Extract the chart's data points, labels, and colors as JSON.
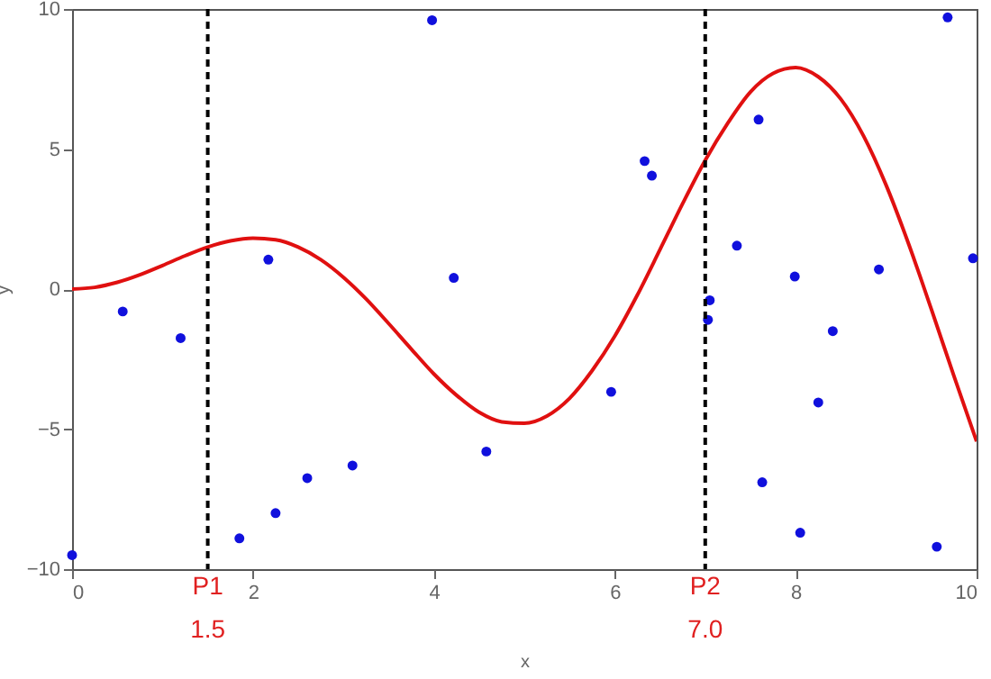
{
  "chart_data": {
    "type": "scatter",
    "xlabel": "x",
    "ylabel": "y",
    "xlim": [
      0,
      10
    ],
    "ylim": [
      -10,
      10
    ],
    "xticks": [
      0,
      2,
      4,
      6,
      8,
      10
    ],
    "yticks": [
      -10,
      -5,
      0,
      5,
      10
    ],
    "grid": false,
    "series": [
      {
        "type": "line",
        "color": "#e01010",
        "line_style": "solid",
        "marker": "none",
        "x": [
          0,
          0.25,
          0.5,
          0.75,
          1,
          1.25,
          1.5,
          1.75,
          2,
          2.25,
          2.5,
          2.75,
          3,
          3.25,
          3.5,
          3.75,
          4,
          4.25,
          4.5,
          4.75,
          5,
          5.25,
          5.5,
          5.75,
          6,
          6.25,
          6.5,
          6.75,
          7,
          7.25,
          7.5,
          7.75,
          8,
          8.25,
          8.5,
          8.75,
          9,
          9.25,
          9.5,
          9.75,
          10
        ],
        "values": [
          0,
          0.06,
          0.24,
          0.51,
          0.84,
          1.19,
          1.5,
          1.72,
          1.82,
          1.76,
          1.5,
          1.05,
          0.42,
          -0.35,
          -1.23,
          -2.14,
          -3.03,
          -3.79,
          -4.4,
          -4.74,
          -4.79,
          -4.53,
          -3.9,
          -2.91,
          -1.68,
          -0.21,
          1.41,
          3.05,
          4.6,
          5.93,
          7.04,
          7.7,
          7.91,
          7.58,
          6.78,
          5.47,
          3.71,
          1.6,
          -0.72,
          -3.11,
          -5.44
        ]
      },
      {
        "color": "#1010dd",
        "marker": "circle",
        "x": [
          0,
          0.56,
          1.2,
          1.85,
          2.17,
          2.25,
          2.6,
          3.1,
          3.98,
          4.22,
          4.58,
          5.96,
          6.33,
          6.41,
          7.03,
          7.05,
          7.35,
          7.59,
          7.63,
          7.99,
          8.05,
          8.25,
          8.41,
          8.92,
          9.56,
          9.68,
          9.96
        ],
        "values": [
          -9.5,
          -0.8,
          -1.75,
          -8.9,
          1.05,
          -8,
          -6.75,
          -6.3,
          9.6,
          0.4,
          -5.8,
          -3.67,
          4.57,
          4.05,
          -1.1,
          -0.4,
          1.55,
          6.05,
          -6.9,
          0.45,
          -8.7,
          -4.05,
          -1.5,
          0.7,
          -9.2,
          9.7,
          1.1
        ]
      }
    ],
    "ref_lines": [
      {
        "axis": "x",
        "value": 1.5,
        "label": "P1",
        "color": "#000000",
        "line_style": "dashed"
      },
      {
        "axis": "x",
        "value": 7.0,
        "label": "P2",
        "color": "#000000",
        "line_style": "dashed"
      }
    ],
    "annotations": [
      {
        "text": "1.5",
        "x": 1.5,
        "y": -10
      },
      {
        "text": "7.0",
        "x": 7.0,
        "y": -10
      }
    ]
  }
}
